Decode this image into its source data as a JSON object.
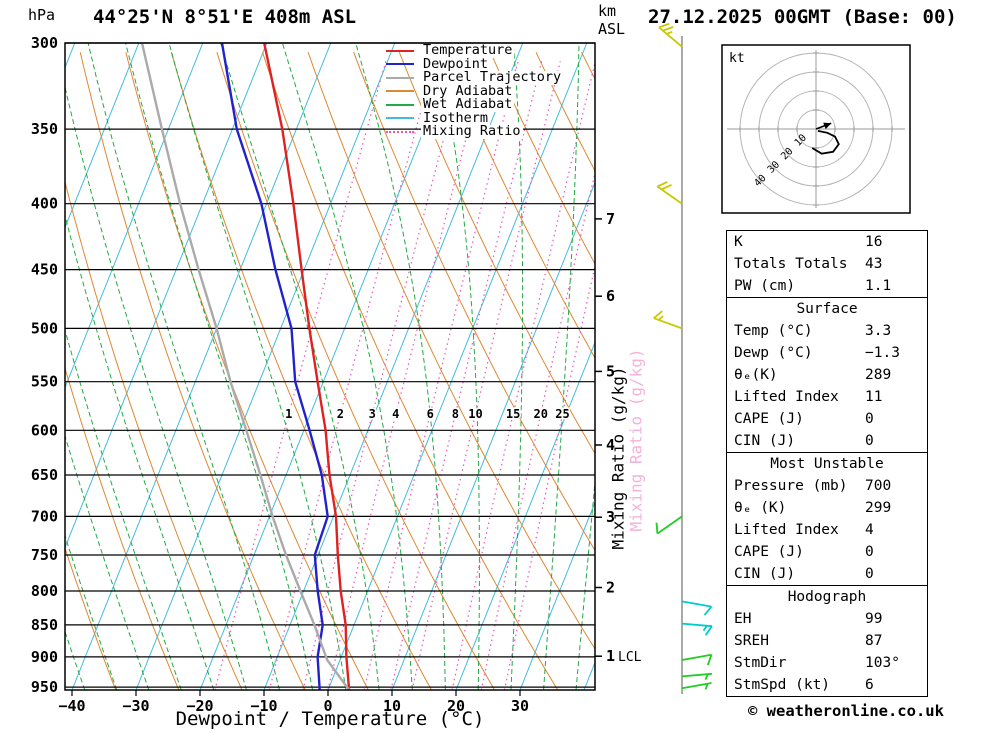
{
  "title": "44°25'N 8°51'E 408m ASL",
  "date_title": "27.12.2025 00GMT (Base: 00)",
  "copyright": "© weatheronline.co.uk",
  "axes": {
    "pressure_unit": "hPa",
    "altitude_unit_line1": "km",
    "altitude_unit_line2": "ASL",
    "xlabel": "Dewpoint / Temperature (°C)",
    "mixing_axis_label": "Mixing Ratio (g/kg)",
    "pressure_ticks": [
      300,
      350,
      400,
      450,
      500,
      550,
      600,
      650,
      700,
      750,
      800,
      850,
      900,
      950
    ],
    "temp_ticks_c": [
      -40,
      -30,
      -20,
      -10,
      0,
      10,
      20,
      30
    ],
    "km_ticks": [
      {
        "km": 7,
        "p": 411
      },
      {
        "km": 6,
        "p": 472
      },
      {
        "km": 5,
        "p": 540
      },
      {
        "km": 4,
        "p": 616
      },
      {
        "km": 3,
        "p": 701
      },
      {
        "km": 2,
        "p": 795
      },
      {
        "km": 1,
        "p": 899,
        "extra": "LCL"
      }
    ]
  },
  "legend": [
    {
      "label": "Temperature",
      "color": "#dd2222",
      "dash": "solid"
    },
    {
      "label": "Dewpoint",
      "color": "#2222cc",
      "dash": "solid"
    },
    {
      "label": "Parcel Trajectory",
      "color": "#aaaaaa",
      "dash": "solid"
    },
    {
      "label": "Dry Adiabat",
      "color": "#dd8833",
      "dash": "solid"
    },
    {
      "label": "Wet Adiabat",
      "color": "#22aa44",
      "dash": "solid"
    },
    {
      "label": "Isotherm",
      "color": "#44bbdd",
      "dash": "solid"
    },
    {
      "label": "Mixing Ratio",
      "color": "#ee55bb",
      "dash": "dotted"
    }
  ],
  "chart_data": {
    "type": "skewt-log-p",
    "pressure_range_hpa": [
      300,
      955
    ],
    "temp_axis_range_c": [
      -40,
      40
    ],
    "series": [
      {
        "name": "Temperature",
        "color": "#dd2222",
        "points_p_t": [
          [
            955,
            3.3
          ],
          [
            900,
            0.8
          ],
          [
            850,
            -1.3
          ],
          [
            800,
            -4.2
          ],
          [
            750,
            -6.9
          ],
          [
            700,
            -9.6
          ],
          [
            650,
            -13.2
          ],
          [
            600,
            -16.6
          ],
          [
            550,
            -20.9
          ],
          [
            500,
            -25.5
          ],
          [
            450,
            -30.4
          ],
          [
            400,
            -35.8
          ],
          [
            350,
            -42.2
          ],
          [
            300,
            -50.4
          ]
        ]
      },
      {
        "name": "Dewpoint",
        "color": "#2222cc",
        "points_p_t": [
          [
            955,
            -1.3
          ],
          [
            900,
            -3.7
          ],
          [
            850,
            -4.9
          ],
          [
            800,
            -7.8
          ],
          [
            750,
            -10.5
          ],
          [
            700,
            -10.9
          ],
          [
            650,
            -14.4
          ],
          [
            600,
            -19.1
          ],
          [
            550,
            -24.4
          ],
          [
            500,
            -28.3
          ],
          [
            450,
            -34.5
          ],
          [
            400,
            -40.8
          ],
          [
            350,
            -49.3
          ],
          [
            300,
            -57.0
          ]
        ]
      },
      {
        "name": "Parcel Trajectory",
        "color": "#aaaaaa",
        "points_p_t": [
          [
            955,
            3.3
          ],
          [
            905,
            -2.0
          ],
          [
            850,
            -6.2
          ],
          [
            800,
            -10.5
          ],
          [
            750,
            -15.0
          ],
          [
            700,
            -19.5
          ],
          [
            650,
            -24.0
          ],
          [
            600,
            -29.0
          ],
          [
            550,
            -34.5
          ],
          [
            500,
            -40.0
          ],
          [
            450,
            -46.5
          ],
          [
            400,
            -53.5
          ],
          [
            350,
            -61.0
          ],
          [
            300,
            -69.5
          ]
        ]
      }
    ],
    "background": {
      "isotherm": {
        "color": "#44bbdd",
        "step_c": 10
      },
      "dry_adiabat": {
        "color": "#dd8833",
        "step_c": 10
      },
      "wet_adiabat": {
        "color": "#22aa44",
        "step_c": 5
      },
      "mixing_ratio": {
        "color": "#ee55bb",
        "values_g_kg": [
          1,
          2,
          3,
          4,
          6,
          8,
          10,
          15,
          20,
          25
        ],
        "label_pressure_hpa": 583
      }
    },
    "lcl_label": "LCL"
  },
  "wind_barbs": [
    {
      "p": 302,
      "dir_deg": 310,
      "spd_kt": 25,
      "color": "#c9c900"
    },
    {
      "p": 400,
      "dir_deg": 305,
      "spd_kt": 20,
      "color": "#c9c900"
    },
    {
      "p": 500,
      "dir_deg": 290,
      "spd_kt": 15,
      "color": "#c9c900"
    },
    {
      "p": 700,
      "dir_deg": 235,
      "spd_kt": 10,
      "color": "#22cc22"
    },
    {
      "p": 815,
      "dir_deg": 100,
      "spd_kt": 10,
      "color": "#00cccc"
    },
    {
      "p": 848,
      "dir_deg": 95,
      "spd_kt": 15,
      "color": "#00cccc"
    },
    {
      "p": 905,
      "dir_deg": 80,
      "spd_kt": 10,
      "color": "#22cc22"
    },
    {
      "p": 932,
      "dir_deg": 85,
      "spd_kt": 5,
      "color": "#22cc22"
    },
    {
      "p": 952,
      "dir_deg": 80,
      "spd_kt": 5,
      "color": "#22cc22"
    }
  ],
  "hodograph": {
    "unit_label": "kt",
    "ring_step_kt": 10,
    "ring_labels": [
      "10",
      "20",
      "30",
      "40"
    ],
    "trace_kt": [
      [
        1,
        -1
      ],
      [
        6,
        -2
      ],
      [
        10,
        -4
      ],
      [
        12,
        -8
      ],
      [
        9,
        -12
      ],
      [
        3,
        -13
      ],
      [
        -2,
        -10
      ]
    ],
    "arrow_to_kt": [
      8,
      3
    ],
    "storm_dir_deg": "103°",
    "storm_spd_kt": "6"
  },
  "table": {
    "sections": [
      {
        "header": null,
        "rows": [
          [
            "K",
            "16"
          ],
          [
            "Totals Totals",
            "43"
          ],
          [
            "PW (cm)",
            "1.1"
          ]
        ]
      },
      {
        "header": "Surface",
        "rows": [
          [
            "Temp (°C)",
            "3.3"
          ],
          [
            "Dewp (°C)",
            "−1.3"
          ],
          [
            "θₑ(K)",
            "289"
          ],
          [
            "Lifted Index",
            "11"
          ],
          [
            "CAPE (J)",
            "0"
          ],
          [
            "CIN (J)",
            "0"
          ]
        ]
      },
      {
        "header": "Most Unstable",
        "rows": [
          [
            "Pressure (mb)",
            "700"
          ],
          [
            "θₑ (K)",
            "299"
          ],
          [
            "Lifted Index",
            "4"
          ],
          [
            "CAPE (J)",
            "0"
          ],
          [
            "CIN (J)",
            "0"
          ]
        ]
      },
      {
        "header": "Hodograph",
        "rows": [
          [
            "EH",
            "99"
          ],
          [
            "SREH",
            "87"
          ],
          [
            "StmDir",
            "103°"
          ],
          [
            "StmSpd (kt)",
            "6"
          ]
        ]
      }
    ]
  }
}
